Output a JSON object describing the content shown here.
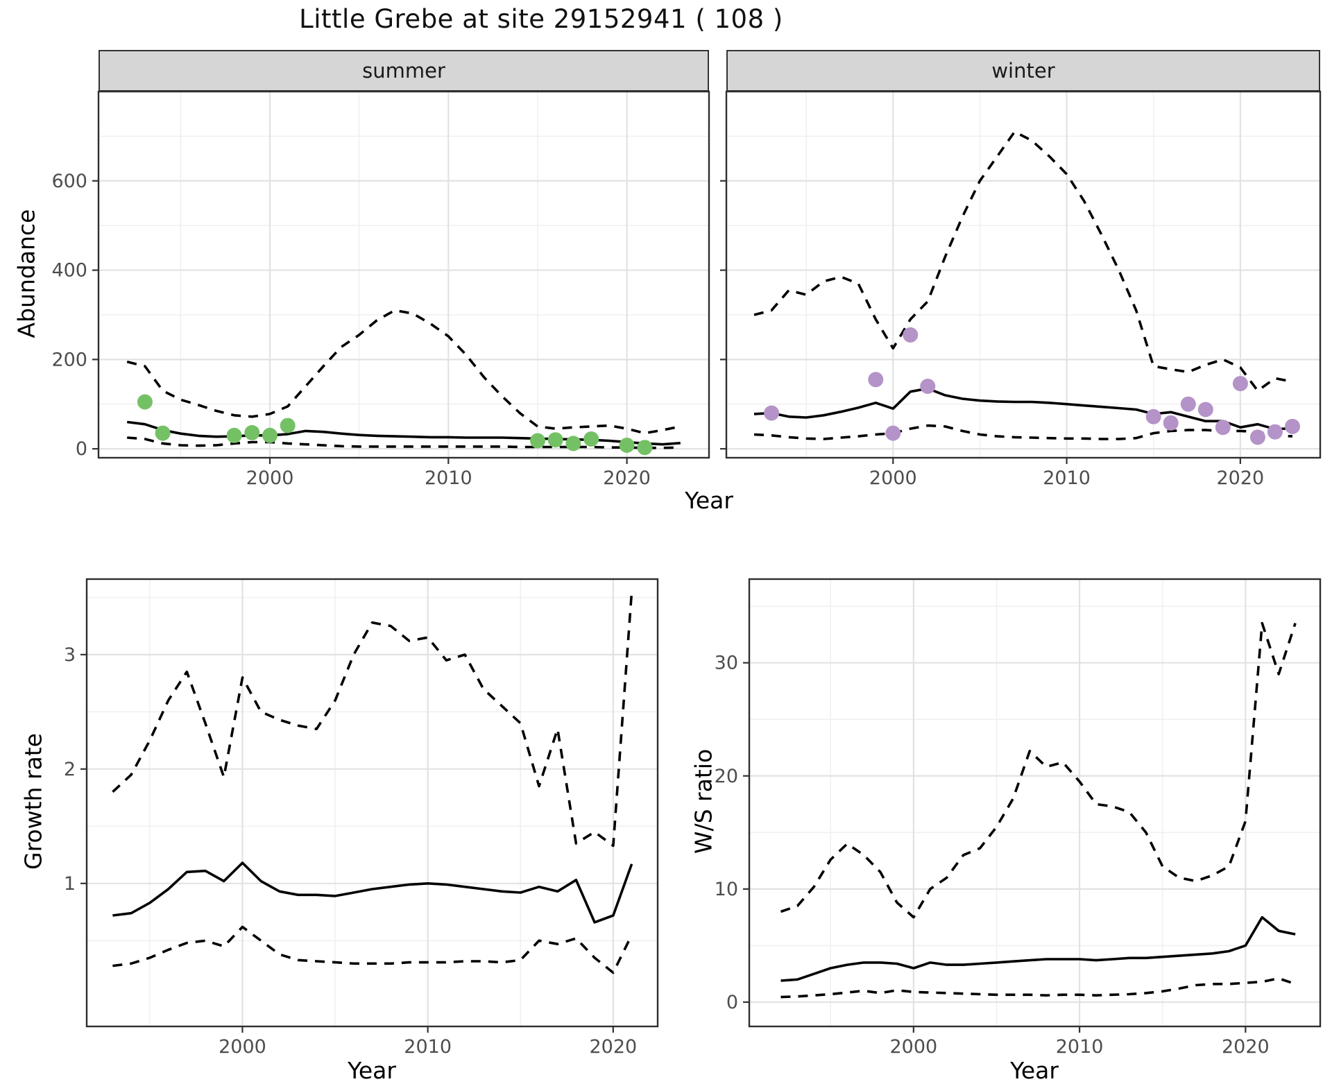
{
  "title": "Little Grebe at site 29152941 ( 108 )",
  "facets": {
    "summer": "summer",
    "winter": "winter"
  },
  "axis_titles": {
    "abundance": "Abundance",
    "year": "Year",
    "growth": "Growth rate",
    "ws": "W/S ratio"
  },
  "colors": {
    "summer_point": "#74c165",
    "winter_point": "#b493c8",
    "line": "#000000",
    "strip_bg": "#d6d6d6",
    "panel_border": "#2e2e2e",
    "grid_major": "#e2e2e2",
    "grid_minor": "#f0f0f0",
    "axis_text": "#4d4d4d",
    "tick_mark": "#333333"
  },
  "chart_data": [
    {
      "id": "abundance-summer",
      "type": "line",
      "title": "summer",
      "xlabel": "Year",
      "ylabel": "Abundance",
      "x_domain": [
        1990.4,
        2024.6
      ],
      "y_domain": [
        -20,
        800
      ],
      "x_ticks": [
        2000,
        2010,
        2020
      ],
      "x_minor": [
        1995,
        2005,
        2015
      ],
      "y_ticks": [
        0,
        200,
        400,
        600
      ],
      "y_minor": [
        100,
        300,
        500,
        700
      ],
      "show_y_tick_labels": true,
      "series": [
        {
          "name": "upper_ci",
          "style": "dashed",
          "x": [
            1992,
            1993,
            1994,
            1995,
            1996,
            1997,
            1998,
            1999,
            2000,
            2001,
            2002,
            2003,
            2004,
            2005,
            2006,
            2007,
            2008,
            2009,
            2010,
            2011,
            2012,
            2013,
            2014,
            2015,
            2016,
            2017,
            2018,
            2019,
            2020,
            2021,
            2022,
            2023
          ],
          "y": [
            195,
            185,
            130,
            110,
            98,
            85,
            75,
            72,
            78,
            95,
            140,
            185,
            228,
            255,
            288,
            310,
            303,
            280,
            252,
            210,
            160,
            118,
            80,
            50,
            45,
            48,
            50,
            52,
            45,
            35,
            42,
            50
          ]
        },
        {
          "name": "median",
          "style": "solid",
          "x": [
            1992,
            1993,
            1994,
            1995,
            1996,
            1997,
            1998,
            1999,
            2000,
            2001,
            2002,
            2003,
            2004,
            2005,
            2006,
            2007,
            2008,
            2009,
            2010,
            2011,
            2012,
            2013,
            2014,
            2015,
            2016,
            2017,
            2018,
            2019,
            2020,
            2021,
            2022,
            2023
          ],
          "y": [
            60,
            55,
            42,
            34,
            29,
            27,
            28,
            30,
            30,
            33,
            40,
            38,
            34,
            31,
            29,
            28,
            27,
            26,
            26,
            25,
            25,
            25,
            24,
            23,
            22,
            21,
            20,
            18,
            15,
            12,
            10,
            13
          ]
        },
        {
          "name": "lower_ci",
          "style": "dashed",
          "x": [
            1992,
            1993,
            1994,
            1995,
            1996,
            1997,
            1998,
            1999,
            2000,
            2001,
            2002,
            2003,
            2004,
            2005,
            2006,
            2007,
            2008,
            2009,
            2010,
            2011,
            2012,
            2013,
            2014,
            2015,
            2016,
            2017,
            2018,
            2019,
            2020,
            2021,
            2022,
            2023
          ],
          "y": [
            25,
            22,
            12,
            8,
            7,
            8,
            12,
            15,
            15,
            12,
            10,
            8,
            6,
            5,
            5,
            5,
            5,
            5,
            5,
            5,
            5,
            5,
            4,
            4,
            4,
            4,
            4,
            3,
            3,
            2,
            2,
            3
          ]
        }
      ],
      "points": {
        "name": "observed_counts",
        "color_key": "summer_point",
        "x": [
          1993,
          1994,
          1998,
          1999,
          2000,
          2001,
          2015,
          2016,
          2017,
          2018,
          2020,
          2021
        ],
        "y": [
          105,
          35,
          30,
          36,
          30,
          52,
          18,
          20,
          12,
          22,
          8,
          3
        ]
      }
    },
    {
      "id": "abundance-winter",
      "type": "line",
      "title": "winter",
      "xlabel": "Year",
      "ylabel": "Abundance",
      "x_domain": [
        1990.4,
        2024.6
      ],
      "y_domain": [
        -20,
        800
      ],
      "x_ticks": [
        2000,
        2010,
        2020
      ],
      "x_minor": [
        1995,
        2005,
        2015
      ],
      "y_ticks": [
        0,
        200,
        400,
        600
      ],
      "y_minor": [
        100,
        300,
        500,
        700
      ],
      "show_y_tick_labels": false,
      "series": [
        {
          "name": "upper_ci",
          "style": "dashed",
          "x": [
            1992,
            1993,
            1994,
            1995,
            1996,
            1997,
            1998,
            1999,
            2000,
            2001,
            2002,
            2003,
            2004,
            2005,
            2006,
            2007,
            2008,
            2009,
            2010,
            2011,
            2012,
            2013,
            2014,
            2015,
            2016,
            2017,
            2018,
            2019,
            2020,
            2021,
            2022,
            2023
          ],
          "y": [
            300,
            310,
            355,
            345,
            375,
            385,
            370,
            290,
            225,
            290,
            330,
            430,
            520,
            600,
            655,
            710,
            690,
            655,
            615,
            555,
            480,
            400,
            310,
            185,
            178,
            172,
            188,
            200,
            182,
            130,
            158,
            150
          ]
        },
        {
          "name": "median",
          "style": "solid",
          "x": [
            1992,
            1993,
            1994,
            1995,
            1996,
            1997,
            1998,
            1999,
            2000,
            2001,
            2002,
            2003,
            2004,
            2005,
            2006,
            2007,
            2008,
            2009,
            2010,
            2011,
            2012,
            2013,
            2014,
            2015,
            2016,
            2017,
            2018,
            2019,
            2020,
            2021,
            2022,
            2023
          ],
          "y": [
            78,
            80,
            72,
            70,
            75,
            83,
            92,
            103,
            90,
            128,
            135,
            120,
            112,
            108,
            106,
            105,
            105,
            103,
            100,
            97,
            94,
            91,
            88,
            78,
            82,
            72,
            62,
            62,
            48,
            55,
            44,
            46
          ]
        },
        {
          "name": "lower_ci",
          "style": "dashed",
          "x": [
            1992,
            1993,
            1994,
            1995,
            1996,
            1997,
            1998,
            1999,
            2000,
            2001,
            2002,
            2003,
            2004,
            2005,
            2006,
            2007,
            2008,
            2009,
            2010,
            2011,
            2012,
            2013,
            2014,
            2015,
            2016,
            2017,
            2018,
            2019,
            2020,
            2021,
            2022,
            2023
          ],
          "y": [
            32,
            30,
            26,
            23,
            22,
            25,
            28,
            32,
            35,
            45,
            52,
            50,
            40,
            32,
            28,
            26,
            25,
            24,
            23,
            23,
            22,
            22,
            24,
            35,
            40,
            42,
            42,
            40,
            40,
            38,
            30,
            28
          ]
        }
      ],
      "points": {
        "name": "observed_counts",
        "color_key": "winter_point",
        "x": [
          1993,
          1999,
          2000,
          2001,
          2002,
          2015,
          2016,
          2017,
          2018,
          2019,
          2020,
          2021,
          2022,
          2023
        ],
        "y": [
          80,
          155,
          35,
          255,
          140,
          72,
          58,
          100,
          88,
          48,
          146,
          26,
          38,
          50
        ]
      }
    },
    {
      "id": "growth-rate",
      "type": "line",
      "title": "",
      "xlabel": "Year",
      "ylabel": "Growth rate",
      "x_domain": [
        1991.6,
        2022.4
      ],
      "y_domain": [
        -0.25,
        3.66
      ],
      "x_ticks": [
        2000,
        2010,
        2020
      ],
      "x_minor": [
        1995,
        2005,
        2015
      ],
      "y_ticks": [
        1,
        2,
        3
      ],
      "y_minor": [
        0.5,
        1.5,
        2.5,
        3.5
      ],
      "show_y_tick_labels": true,
      "series": [
        {
          "name": "upper_ci",
          "style": "dashed",
          "x": [
            1993,
            1994,
            1995,
            1996,
            1997,
            1998,
            1999,
            2000,
            2001,
            2002,
            2003,
            2004,
            2005,
            2006,
            2007,
            2008,
            2009,
            2010,
            2011,
            2012,
            2013,
            2014,
            2015,
            2016,
            2017,
            2018,
            2019,
            2020,
            2021
          ],
          "y": [
            1.8,
            1.95,
            2.25,
            2.6,
            2.85,
            2.4,
            1.93,
            2.8,
            2.5,
            2.43,
            2.38,
            2.35,
            2.6,
            3.0,
            3.28,
            3.25,
            3.12,
            3.15,
            2.95,
            3.0,
            2.7,
            2.55,
            2.4,
            1.85,
            2.35,
            1.35,
            1.45,
            1.33,
            3.55
          ]
        },
        {
          "name": "median",
          "style": "solid",
          "x": [
            1993,
            1994,
            1995,
            1996,
            1997,
            1998,
            1999,
            2000,
            2001,
            2002,
            2003,
            2004,
            2005,
            2006,
            2007,
            2008,
            2009,
            2010,
            2011,
            2012,
            2013,
            2014,
            2015,
            2016,
            2017,
            2018,
            2019,
            2020,
            2021
          ],
          "y": [
            0.72,
            0.74,
            0.83,
            0.95,
            1.1,
            1.11,
            1.02,
            1.18,
            1.02,
            0.93,
            0.9,
            0.9,
            0.89,
            0.92,
            0.95,
            0.97,
            0.99,
            1.0,
            0.99,
            0.97,
            0.95,
            0.93,
            0.92,
            0.97,
            0.93,
            1.03,
            0.66,
            0.72,
            1.17
          ]
        },
        {
          "name": "lower_ci",
          "style": "dashed",
          "x": [
            1993,
            1994,
            1995,
            1996,
            1997,
            1998,
            1999,
            2000,
            2001,
            2002,
            2003,
            2004,
            2005,
            2006,
            2007,
            2008,
            2009,
            2010,
            2011,
            2012,
            2013,
            2014,
            2015,
            2016,
            2017,
            2018,
            2019,
            2020,
            2021
          ],
          "y": [
            0.28,
            0.3,
            0.35,
            0.42,
            0.48,
            0.5,
            0.45,
            0.62,
            0.5,
            0.38,
            0.33,
            0.32,
            0.31,
            0.3,
            0.3,
            0.3,
            0.31,
            0.31,
            0.31,
            0.32,
            0.32,
            0.31,
            0.33,
            0.5,
            0.47,
            0.52,
            0.35,
            0.22,
            0.55
          ]
        }
      ],
      "points": null
    },
    {
      "id": "ws-ratio",
      "type": "line",
      "title": "",
      "xlabel": "Year",
      "ylabel": "W/S ratio",
      "x_domain": [
        1990.1,
        2024.5
      ],
      "y_domain": [
        -2.15,
        37.4
      ],
      "x_ticks": [
        2000,
        2010,
        2020
      ],
      "x_minor": [
        1995,
        2005,
        2015
      ],
      "y_ticks": [
        0,
        10,
        20,
        30
      ],
      "y_minor": [
        5,
        15,
        25,
        35
      ],
      "show_y_tick_labels": true,
      "series": [
        {
          "name": "upper_ci",
          "style": "dashed",
          "x": [
            1992,
            1993,
            1994,
            1995,
            1996,
            1997,
            1998,
            1999,
            2000,
            2001,
            2002,
            2003,
            2004,
            2005,
            2006,
            2007,
            2008,
            2009,
            2010,
            2011,
            2012,
            2013,
            2014,
            2015,
            2016,
            2017,
            2018,
            2019,
            2020,
            2021,
            2022,
            2023
          ],
          "y": [
            8.0,
            8.5,
            10.2,
            12.6,
            14.0,
            13.0,
            11.5,
            8.8,
            7.5,
            10.0,
            11.0,
            13.0,
            13.6,
            15.5,
            18.0,
            22.2,
            20.8,
            21.2,
            19.5,
            17.5,
            17.3,
            16.8,
            15.0,
            12.0,
            11.0,
            10.7,
            11.2,
            12.0,
            16.0,
            33.5,
            29.0,
            33.5
          ]
        },
        {
          "name": "median",
          "style": "solid",
          "x": [
            1992,
            1993,
            1994,
            1995,
            1996,
            1997,
            1998,
            1999,
            2000,
            2001,
            2002,
            2003,
            2004,
            2005,
            2006,
            2007,
            2008,
            2009,
            2010,
            2011,
            2012,
            2013,
            2014,
            2015,
            2016,
            2017,
            2018,
            2019,
            2020,
            2021,
            2022,
            2023
          ],
          "y": [
            1.9,
            2.0,
            2.5,
            3.0,
            3.3,
            3.5,
            3.5,
            3.4,
            3.0,
            3.5,
            3.3,
            3.3,
            3.4,
            3.5,
            3.6,
            3.7,
            3.8,
            3.8,
            3.8,
            3.7,
            3.8,
            3.9,
            3.9,
            4.0,
            4.1,
            4.2,
            4.3,
            4.5,
            5.0,
            7.5,
            6.3,
            6.0
          ]
        },
        {
          "name": "lower_ci",
          "style": "dashed",
          "x": [
            1992,
            1993,
            1994,
            1995,
            1996,
            1997,
            1998,
            1999,
            2000,
            2001,
            2002,
            2003,
            2004,
            2005,
            2006,
            2007,
            2008,
            2009,
            2010,
            2011,
            2012,
            2013,
            2014,
            2015,
            2016,
            2017,
            2018,
            2019,
            2020,
            2021,
            2022,
            2023
          ],
          "y": [
            0.45,
            0.5,
            0.6,
            0.7,
            0.85,
            1.0,
            0.8,
            1.05,
            0.9,
            0.85,
            0.8,
            0.75,
            0.7,
            0.65,
            0.65,
            0.65,
            0.6,
            0.65,
            0.65,
            0.6,
            0.65,
            0.7,
            0.8,
            0.95,
            1.2,
            1.5,
            1.6,
            1.6,
            1.7,
            1.8,
            2.1,
            1.6
          ]
        }
      ],
      "points": null
    }
  ]
}
